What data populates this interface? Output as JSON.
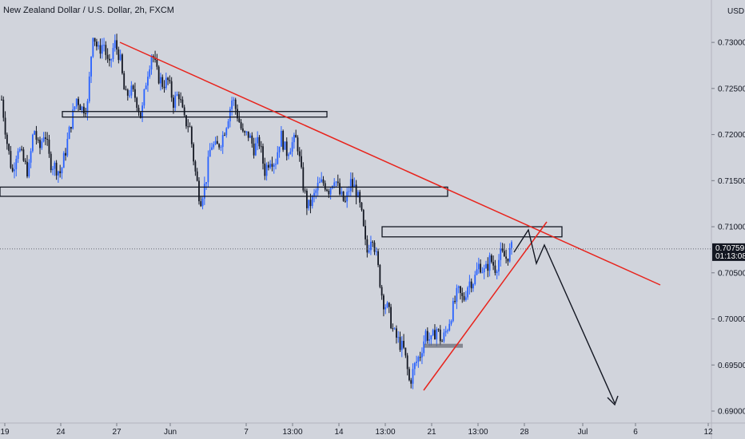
{
  "chart_data": {
    "type": "candlestick",
    "title": "New Zealand Dollar / U.S. Dollar, 2h, FXCM",
    "currency": "USD",
    "y_ticks": [
      "0.73000",
      "0.72500",
      "0.72000",
      "0.71500",
      "0.71000",
      "0.70500",
      "0.70000",
      "0.69500",
      "0.69000"
    ],
    "ylim": [
      0.6887,
      0.7346
    ],
    "x_ticks": [
      "19",
      "24",
      "27",
      "Jun",
      "7",
      "13:00",
      "14",
      "13:00",
      "21",
      "13:00",
      "28",
      "Jul",
      "6",
      "12"
    ],
    "last_price": "0.70759",
    "countdown": "01:13:08",
    "colors": {
      "background": "#d1d4dc",
      "up": "#2962ff",
      "down": "#131722",
      "trendline": "#e8231c",
      "price_line": "#434651",
      "zone": "#131722",
      "projection": "#131722"
    },
    "price_path": [
      [
        0.7255,
        0.7238
      ],
      [
        0.7218,
        0.7192
      ],
      [
        0.7172,
        0.7158
      ],
      [
        0.7172,
        0.7188
      ],
      [
        0.7175,
        0.7172
      ],
      [
        0.7172,
        0.7158
      ],
      [
        0.719,
        0.7208
      ],
      [
        0.7205,
        0.7182
      ],
      [
        0.7195,
        0.7205
      ],
      [
        0.72,
        0.717
      ],
      [
        0.7157,
        0.7165
      ],
      [
        0.7162,
        0.7158
      ],
      [
        0.7172,
        0.7185
      ],
      [
        0.719,
        0.7215
      ],
      [
        0.7222,
        0.724
      ],
      [
        0.7235,
        0.7228
      ],
      [
        0.7228,
        0.7232
      ],
      [
        0.731,
        0.7312
      ],
      [
        0.731,
        0.729
      ],
      [
        0.7285,
        0.73
      ],
      [
        0.729,
        0.727
      ],
      [
        0.7282,
        0.73
      ],
      [
        0.73,
        0.7285
      ],
      [
        0.7265,
        0.724
      ],
      [
        0.7255,
        0.7248
      ],
      [
        0.7255,
        0.724
      ],
      [
        0.723,
        0.7218
      ],
      [
        0.724,
        0.7262
      ],
      [
        0.727,
        0.729
      ],
      [
        0.7285,
        0.7265
      ],
      [
        0.726,
        0.7255
      ],
      [
        0.725,
        0.7258
      ],
      [
        0.7255,
        0.7235
      ],
      [
        0.725,
        0.7245
      ],
      [
        0.7225,
        0.7215
      ],
      [
        0.7228,
        0.721
      ],
      [
        0.7188,
        0.7162
      ],
      [
        0.7148,
        0.7128
      ],
      [
        0.714,
        0.7148
      ],
      [
        0.7155,
        0.719
      ],
      [
        0.7198,
        0.7185
      ],
      [
        0.7205,
        0.7195
      ],
      [
        0.72,
        0.7215
      ],
      [
        0.723,
        0.724
      ],
      [
        0.7228,
        0.722
      ],
      [
        0.721,
        0.7198
      ],
      [
        0.719,
        0.72
      ],
      [
        0.7195,
        0.7185
      ],
      [
        0.7188,
        0.7192
      ],
      [
        0.7172,
        0.716
      ],
      [
        0.7165,
        0.7175
      ],
      [
        0.716,
        0.717
      ],
      [
        0.7185,
        0.72
      ],
      [
        0.7195,
        0.718
      ],
      [
        0.7175,
        0.719
      ],
      [
        0.7205,
        0.7195
      ],
      [
        0.718,
        0.715
      ],
      [
        0.714,
        0.712
      ],
      [
        0.7118,
        0.713
      ],
      [
        0.714,
        0.7145
      ],
      [
        0.714,
        0.7148
      ],
      [
        0.715,
        0.714
      ],
      [
        0.7145,
        0.7155
      ],
      [
        0.7138,
        0.7135
      ],
      [
        0.7122,
        0.7125
      ],
      [
        0.713,
        0.7148
      ],
      [
        0.715,
        0.714
      ],
      [
        0.7135,
        0.7115
      ],
      [
        0.709,
        0.707
      ],
      [
        0.708,
        0.7095
      ],
      [
        0.7085,
        0.706
      ],
      [
        0.704,
        0.702
      ],
      [
        0.702,
        0.701
      ],
      [
        0.7,
        0.6985
      ],
      [
        0.698,
        0.6975
      ],
      [
        0.6975,
        0.6965
      ],
      [
        0.696,
        0.693
      ],
      [
        0.6935,
        0.695
      ],
      [
        0.6955,
        0.6962
      ],
      [
        0.6975,
        0.6985
      ],
      [
        0.698,
        0.6975
      ],
      [
        0.698,
        0.699
      ],
      [
        0.6985,
        0.6975
      ],
      [
        0.6978,
        0.699
      ],
      [
        0.6995,
        0.701
      ],
      [
        0.7015,
        0.703
      ],
      [
        0.7025,
        0.702
      ],
      [
        0.7028,
        0.704
      ],
      [
        0.7035,
        0.7042
      ],
      [
        0.7048,
        0.706
      ],
      [
        0.7055,
        0.705
      ],
      [
        0.7058,
        0.7065
      ],
      [
        0.706,
        0.7055
      ],
      [
        0.7062,
        0.707
      ],
      [
        0.7068,
        0.7066
      ],
      [
        0.707,
        0.7076
      ]
    ],
    "annotations": {
      "resistance_trendline": {
        "from": [
          2,
          0.7316
        ],
        "to": [
          28,
          0.704
        ]
      },
      "support_trendline": {
        "from": [
          21,
          0.6921
        ],
        "to": [
          25,
          0.7112
        ]
      },
      "zones": [
        {
          "x1": 3,
          "x2": 16,
          "y1": 0.7219,
          "y2": 0.7225
        },
        {
          "x1": 0,
          "x2": 23,
          "y1": 0.7133,
          "y2": 0.7143
        },
        {
          "x1": 20,
          "x2": 29,
          "y1": 0.7089,
          "y2": 0.71
        }
      ],
      "demand_zone": {
        "x1": 22,
        "x2": 24,
        "y1": 0.6968,
        "y2": 0.6973
      },
      "projection": [
        [
          0,
          0.7076
        ],
        [
          1,
          0.7098
        ],
        [
          2,
          0.7078
        ],
        [
          3,
          0.709
        ],
        [
          4,
          0.691
        ]
      ]
    }
  }
}
